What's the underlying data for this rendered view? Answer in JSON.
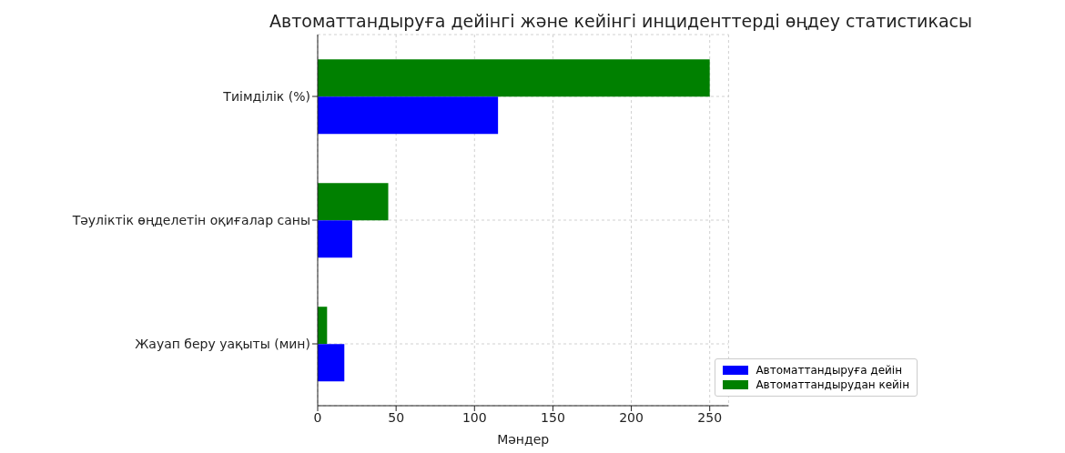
{
  "chart_data": {
    "type": "bar",
    "orientation": "horizontal",
    "title": "Автоматтандыруға дейінгі және кейінгі инциденттерді өңдеу статистикасы",
    "xlabel": "Мәндер",
    "categories": [
      "Тиімділік (%)",
      "Тәуліктік өңделетін оқиғалар саны",
      "Жауап беру уақыты (мин)"
    ],
    "series": [
      {
        "name": "Автоматтандыруға дейін",
        "color": "#0000ff",
        "values": [
          115,
          22,
          17
        ]
      },
      {
        "name": "Автоматтандырудан кейін",
        "color": "#008000",
        "values": [
          250,
          45,
          6
        ]
      }
    ],
    "xlim": [
      0,
      262
    ],
    "xticks": [
      0,
      50,
      100,
      150,
      200,
      250
    ],
    "grid": true,
    "legend": "bottom right"
  }
}
